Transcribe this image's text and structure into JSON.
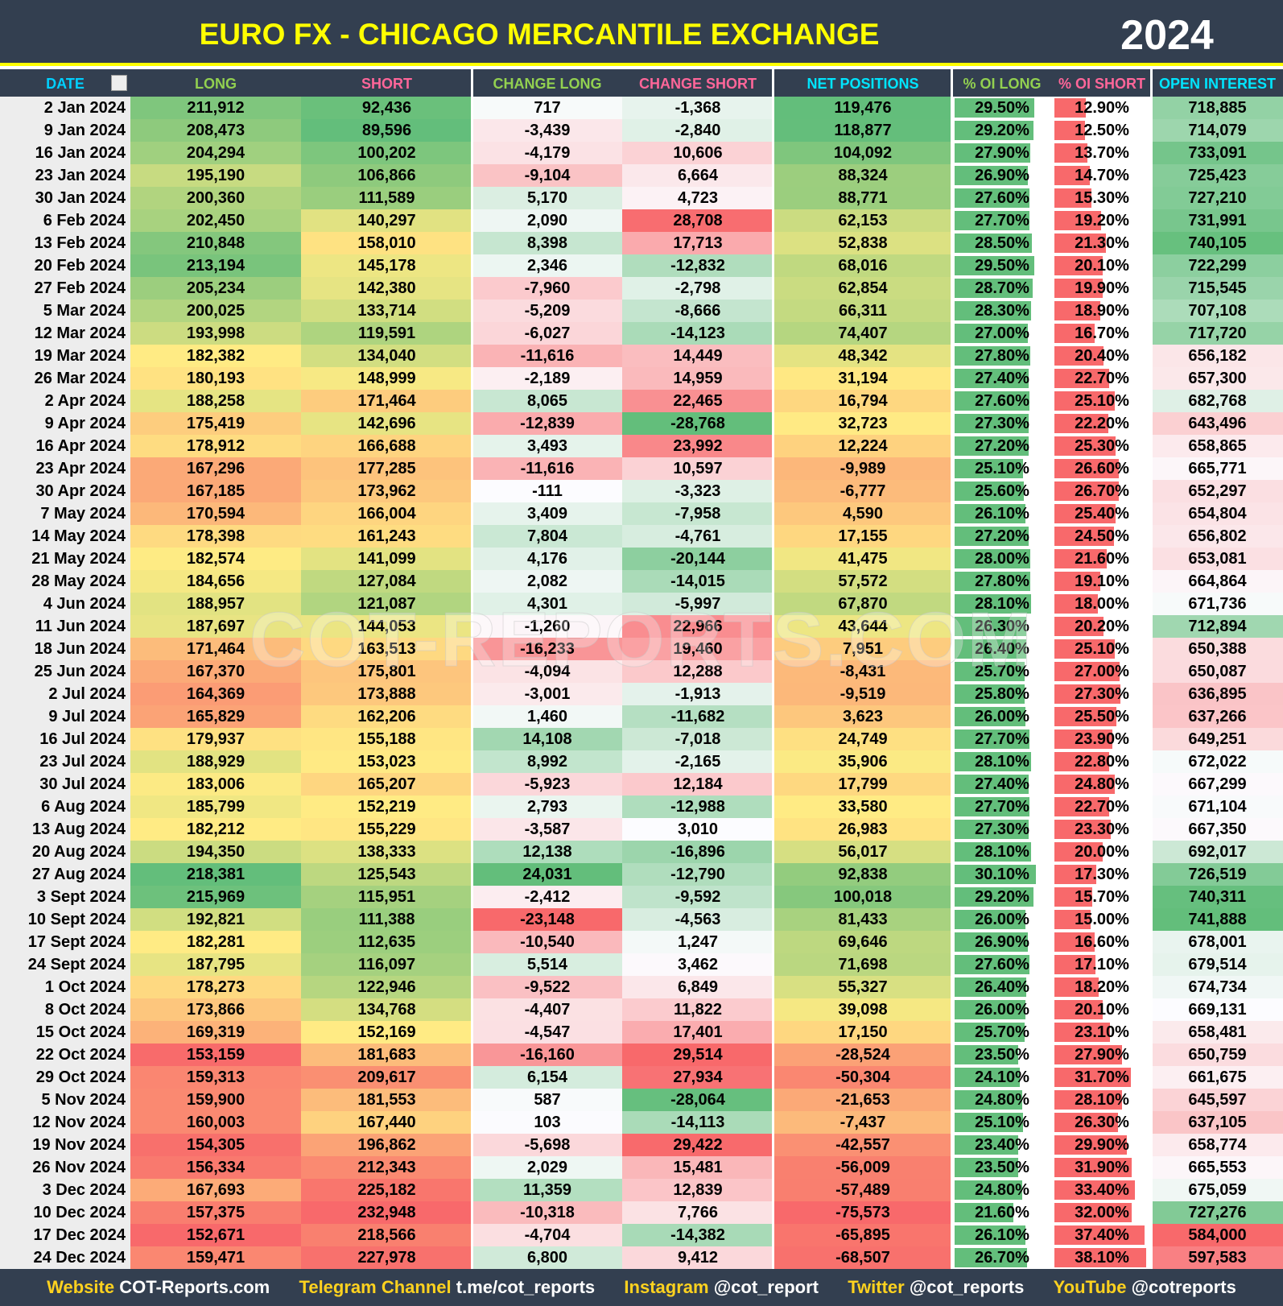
{
  "header": {
    "title": "EURO FX - CHICAGO MERCANTILE EXCHANGE",
    "year": "2024"
  },
  "table": {
    "columns": [
      "DATE",
      "LONG",
      "SHORT",
      "CHANGE LONG",
      "CHANGE SHORT",
      "NET POSITIONS",
      "% OI LONG",
      "% OI SHORT",
      "OPEN INTEREST"
    ],
    "rows": [
      [
        "2 Jan 2024",
        "211,912",
        "92,436",
        "717",
        "-1,368",
        "119,476",
        "29.50%",
        "12.90%",
        "718,885"
      ],
      [
        "9 Jan 2024",
        "208,473",
        "89,596",
        "-3,439",
        "-2,840",
        "118,877",
        "29.20%",
        "12.50%",
        "714,079"
      ],
      [
        "16 Jan 2024",
        "204,294",
        "100,202",
        "-4,179",
        "10,606",
        "104,092",
        "27.90%",
        "13.70%",
        "733,091"
      ],
      [
        "23 Jan 2024",
        "195,190",
        "106,866",
        "-9,104",
        "6,664",
        "88,324",
        "26.90%",
        "14.70%",
        "725,423"
      ],
      [
        "30 Jan 2024",
        "200,360",
        "111,589",
        "5,170",
        "4,723",
        "88,771",
        "27.60%",
        "15.30%",
        "727,210"
      ],
      [
        "6 Feb 2024",
        "202,450",
        "140,297",
        "2,090",
        "28,708",
        "62,153",
        "27.70%",
        "19.20%",
        "731,991"
      ],
      [
        "13 Feb 2024",
        "210,848",
        "158,010",
        "8,398",
        "17,713",
        "52,838",
        "28.50%",
        "21.30%",
        "740,105"
      ],
      [
        "20 Feb 2024",
        "213,194",
        "145,178",
        "2,346",
        "-12,832",
        "68,016",
        "29.50%",
        "20.10%",
        "722,299"
      ],
      [
        "27 Feb 2024",
        "205,234",
        "142,380",
        "-7,960",
        "-2,798",
        "62,854",
        "28.70%",
        "19.90%",
        "715,545"
      ],
      [
        "5 Mar 2024",
        "200,025",
        "133,714",
        "-5,209",
        "-8,666",
        "66,311",
        "28.30%",
        "18.90%",
        "707,108"
      ],
      [
        "12 Mar 2024",
        "193,998",
        "119,591",
        "-6,027",
        "-14,123",
        "74,407",
        "27.00%",
        "16.70%",
        "717,720"
      ],
      [
        "19 Mar 2024",
        "182,382",
        "134,040",
        "-11,616",
        "14,449",
        "48,342",
        "27.80%",
        "20.40%",
        "656,182"
      ],
      [
        "26 Mar 2024",
        "180,193",
        "148,999",
        "-2,189",
        "14,959",
        "31,194",
        "27.40%",
        "22.70%",
        "657,300"
      ],
      [
        "2 Apr 2024",
        "188,258",
        "171,464",
        "8,065",
        "22,465",
        "16,794",
        "27.60%",
        "25.10%",
        "682,768"
      ],
      [
        "9 Apr 2024",
        "175,419",
        "142,696",
        "-12,839",
        "-28,768",
        "32,723",
        "27.30%",
        "22.20%",
        "643,496"
      ],
      [
        "16 Apr 2024",
        "178,912",
        "166,688",
        "3,493",
        "23,992",
        "12,224",
        "27.20%",
        "25.30%",
        "658,865"
      ],
      [
        "23 Apr 2024",
        "167,296",
        "177,285",
        "-11,616",
        "10,597",
        "-9,989",
        "25.10%",
        "26.60%",
        "665,771"
      ],
      [
        "30 Apr 2024",
        "167,185",
        "173,962",
        "-111",
        "-3,323",
        "-6,777",
        "25.60%",
        "26.70%",
        "652,297"
      ],
      [
        "7 May 2024",
        "170,594",
        "166,004",
        "3,409",
        "-7,958",
        "4,590",
        "26.10%",
        "25.40%",
        "654,804"
      ],
      [
        "14 May 2024",
        "178,398",
        "161,243",
        "7,804",
        "-4,761",
        "17,155",
        "27.20%",
        "24.50%",
        "656,802"
      ],
      [
        "21 May 2024",
        "182,574",
        "141,099",
        "4,176",
        "-20,144",
        "41,475",
        "28.00%",
        "21.60%",
        "653,081"
      ],
      [
        "28 May 2024",
        "184,656",
        "127,084",
        "2,082",
        "-14,015",
        "57,572",
        "27.80%",
        "19.10%",
        "664,864"
      ],
      [
        "4 Jun 2024",
        "188,957",
        "121,087",
        "4,301",
        "-5,997",
        "67,870",
        "28.10%",
        "18.00%",
        "671,736"
      ],
      [
        "11 Jun 2024",
        "187,697",
        "144,053",
        "-1,260",
        "22,966",
        "43,644",
        "26.30%",
        "20.20%",
        "712,894"
      ],
      [
        "18 Jun 2024",
        "171,464",
        "163,513",
        "-16,233",
        "19,460",
        "7,951",
        "26.40%",
        "25.10%",
        "650,388"
      ],
      [
        "25 Jun 2024",
        "167,370",
        "175,801",
        "-4,094",
        "12,288",
        "-8,431",
        "25.70%",
        "27.00%",
        "650,087"
      ],
      [
        "2 Jul 2024",
        "164,369",
        "173,888",
        "-3,001",
        "-1,913",
        "-9,519",
        "25.80%",
        "27.30%",
        "636,895"
      ],
      [
        "9 Jul 2024",
        "165,829",
        "162,206",
        "1,460",
        "-11,682",
        "3,623",
        "26.00%",
        "25.50%",
        "637,266"
      ],
      [
        "16 Jul 2024",
        "179,937",
        "155,188",
        "14,108",
        "-7,018",
        "24,749",
        "27.70%",
        "23.90%",
        "649,251"
      ],
      [
        "23 Jul 2024",
        "188,929",
        "153,023",
        "8,992",
        "-2,165",
        "35,906",
        "28.10%",
        "22.80%",
        "672,022"
      ],
      [
        "30 Jul 2024",
        "183,006",
        "165,207",
        "-5,923",
        "12,184",
        "17,799",
        "27.40%",
        "24.80%",
        "667,299"
      ],
      [
        "6 Aug 2024",
        "185,799",
        "152,219",
        "2,793",
        "-12,988",
        "33,580",
        "27.70%",
        "22.70%",
        "671,104"
      ],
      [
        "13 Aug 2024",
        "182,212",
        "155,229",
        "-3,587",
        "3,010",
        "26,983",
        "27.30%",
        "23.30%",
        "667,350"
      ],
      [
        "20 Aug 2024",
        "194,350",
        "138,333",
        "12,138",
        "-16,896",
        "56,017",
        "28.10%",
        "20.00%",
        "692,017"
      ],
      [
        "27 Aug 2024",
        "218,381",
        "125,543",
        "24,031",
        "-12,790",
        "92,838",
        "30.10%",
        "17.30%",
        "726,519"
      ],
      [
        "3 Sept 2024",
        "215,969",
        "115,951",
        "-2,412",
        "-9,592",
        "100,018",
        "29.20%",
        "15.70%",
        "740,311"
      ],
      [
        "10 Sept 2024",
        "192,821",
        "111,388",
        "-23,148",
        "-4,563",
        "81,433",
        "26.00%",
        "15.00%",
        "741,888"
      ],
      [
        "17 Sept 2024",
        "182,281",
        "112,635",
        "-10,540",
        "1,247",
        "69,646",
        "26.90%",
        "16.60%",
        "678,001"
      ],
      [
        "24 Sept 2024",
        "187,795",
        "116,097",
        "5,514",
        "3,462",
        "71,698",
        "27.60%",
        "17.10%",
        "679,514"
      ],
      [
        "1 Oct 2024",
        "178,273",
        "122,946",
        "-9,522",
        "6,849",
        "55,327",
        "26.40%",
        "18.20%",
        "674,734"
      ],
      [
        "8 Oct 2024",
        "173,866",
        "134,768",
        "-4,407",
        "11,822",
        "39,098",
        "26.00%",
        "20.10%",
        "669,131"
      ],
      [
        "15 Oct 2024",
        "169,319",
        "152,169",
        "-4,547",
        "17,401",
        "17,150",
        "25.70%",
        "23.10%",
        "658,481"
      ],
      [
        "22 Oct 2024",
        "153,159",
        "181,683",
        "-16,160",
        "29,514",
        "-28,524",
        "23.50%",
        "27.90%",
        "650,759"
      ],
      [
        "29 Oct 2024",
        "159,313",
        "209,617",
        "6,154",
        "27,934",
        "-50,304",
        "24.10%",
        "31.70%",
        "661,675"
      ],
      [
        "5 Nov 2024",
        "159,900",
        "181,553",
        "587",
        "-28,064",
        "-21,653",
        "24.80%",
        "28.10%",
        "645,597"
      ],
      [
        "12 Nov 2024",
        "160,003",
        "167,440",
        "103",
        "-14,113",
        "-7,437",
        "25.10%",
        "26.30%",
        "637,105"
      ],
      [
        "19 Nov 2024",
        "154,305",
        "196,862",
        "-5,698",
        "29,422",
        "-42,557",
        "23.40%",
        "29.90%",
        "658,774"
      ],
      [
        "26 Nov 2024",
        "156,334",
        "212,343",
        "2,029",
        "15,481",
        "-56,009",
        "23.50%",
        "31.90%",
        "665,553"
      ],
      [
        "3 Dec 2024",
        "167,693",
        "225,182",
        "11,359",
        "12,839",
        "-57,489",
        "24.80%",
        "33.40%",
        "675,059"
      ],
      [
        "10 Dec 2024",
        "157,375",
        "232,948",
        "-10,318",
        "7,766",
        "-75,573",
        "21.60%",
        "32.00%",
        "727,276"
      ],
      [
        "17 Dec 2024",
        "152,671",
        "218,566",
        "-4,704",
        "-14,382",
        "-65,895",
        "26.10%",
        "37.40%",
        "584,000"
      ],
      [
        "24 Dec 2024",
        "159,471",
        "227,978",
        "6,800",
        "9,412",
        "-68,507",
        "26.70%",
        "38.10%",
        "597,583"
      ]
    ]
  },
  "watermark": "COT-REPORTS.COM",
  "footer": [
    {
      "label": "Website",
      "value": "COT-Reports.com"
    },
    {
      "label": "Telegram Channel",
      "value": "t.me/cot_reports"
    },
    {
      "label": "Instagram",
      "value": "@cot_report"
    },
    {
      "label": "Twitter",
      "value": "@cot_reports"
    },
    {
      "label": "YouTube",
      "value": "@cotreports"
    }
  ]
}
